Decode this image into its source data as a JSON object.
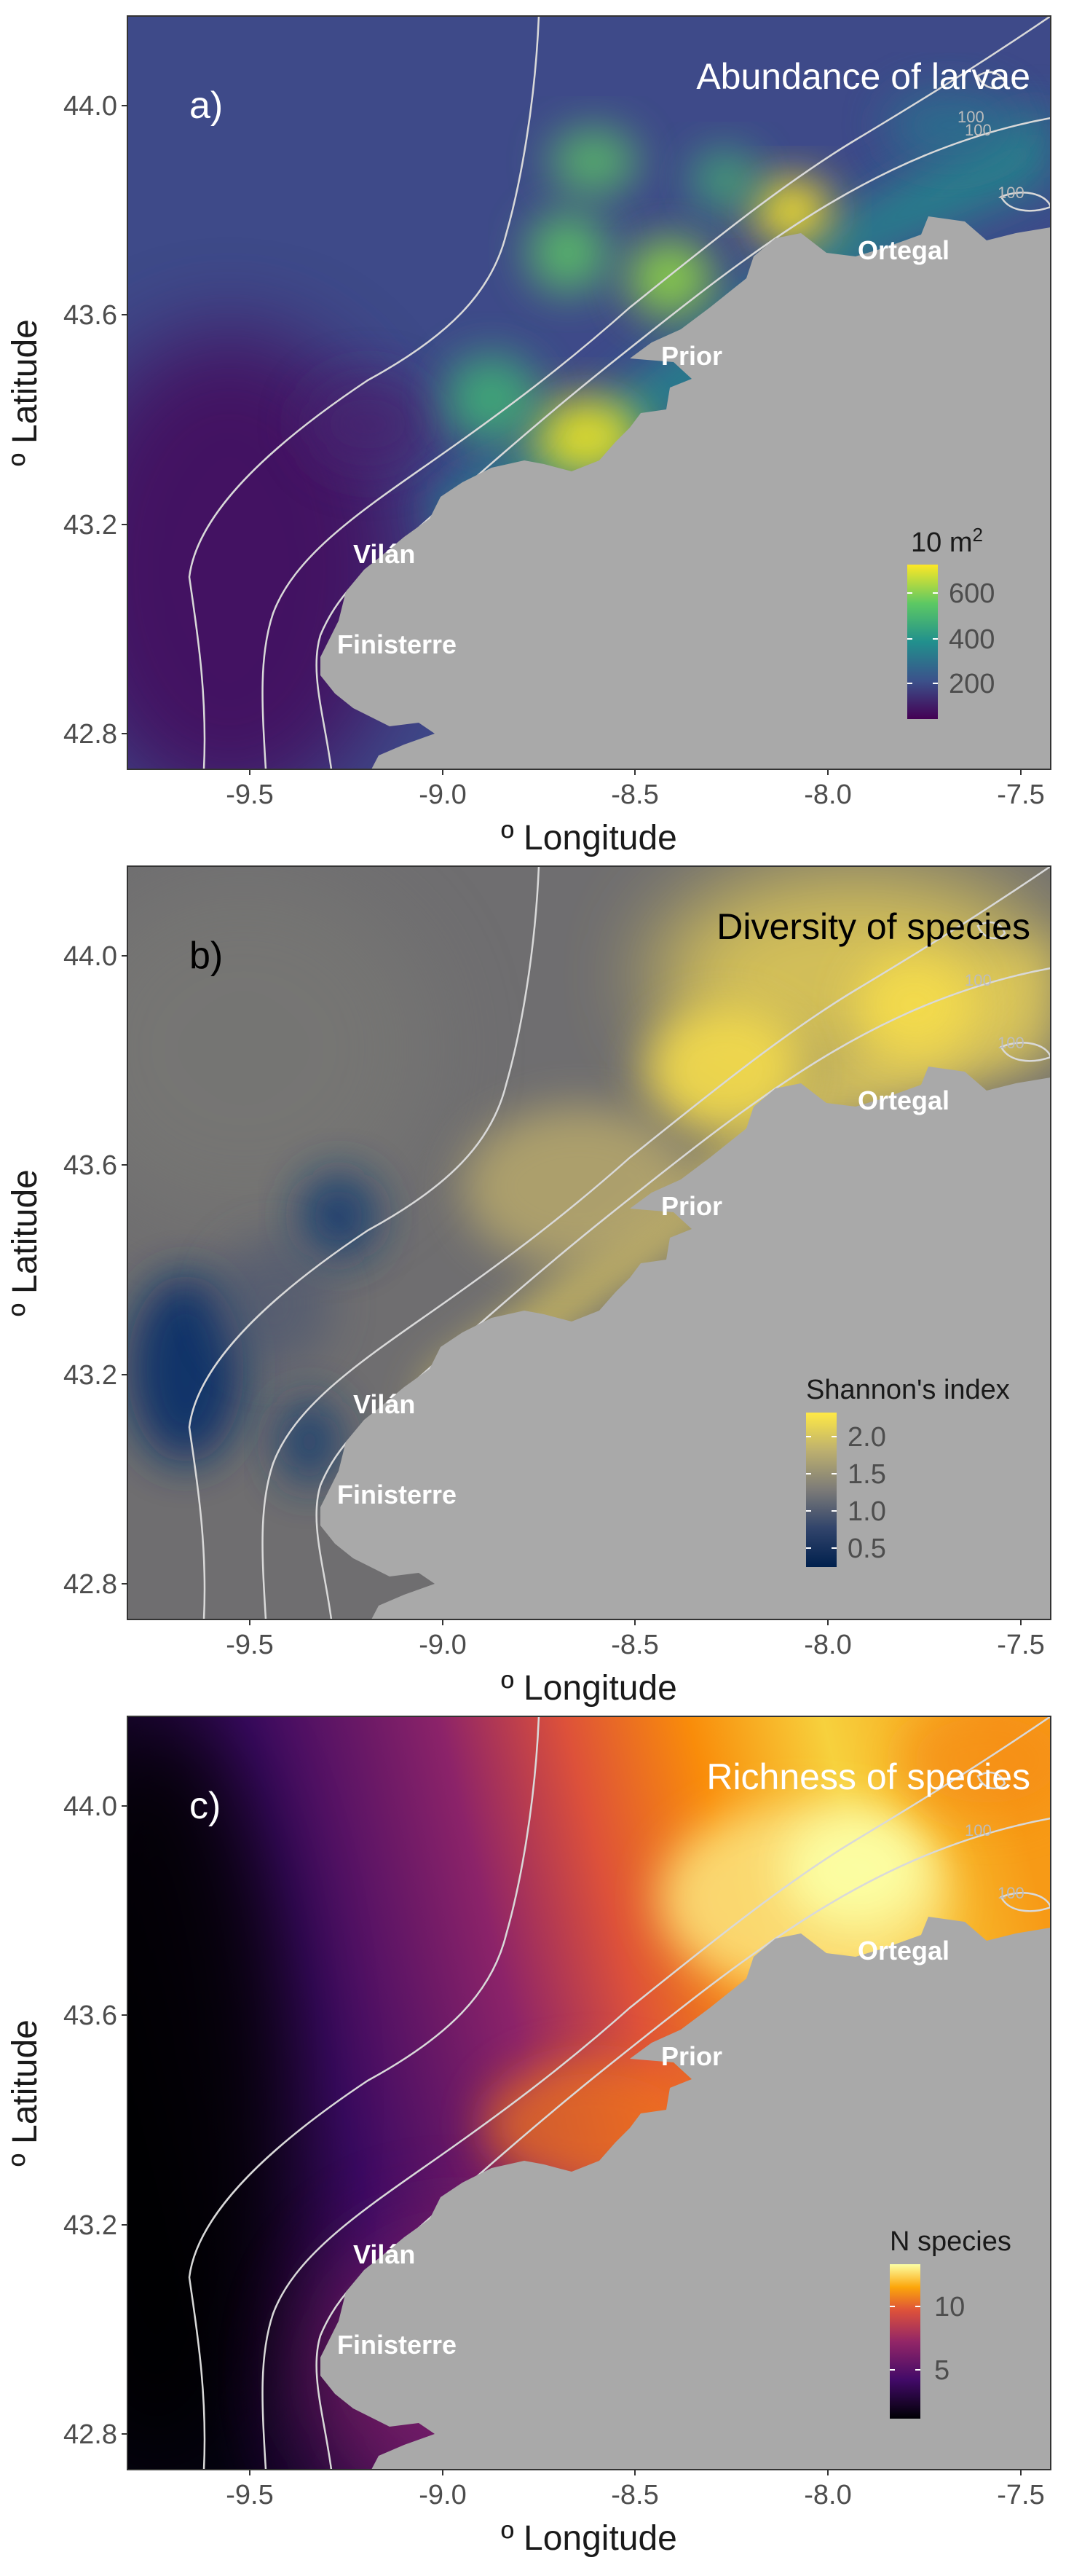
{
  "figure": {
    "x_axis_title": "º Longitude",
    "y_axis_title": "º Latitude",
    "x_ticks": [
      "-9.5",
      "-9.0",
      "-8.5",
      "-8.0",
      "-7.5"
    ],
    "y_ticks": [
      "42.8",
      "43.2",
      "43.6",
      "44.0"
    ],
    "places": [
      "Ortegal",
      "Prior",
      "Vilán",
      "Finisterre"
    ],
    "isobath_label": "100",
    "land_color": "#a9a9a9",
    "isobath_color": "#d9d9d9"
  },
  "panels": [
    {
      "tag": "a)",
      "title": "Abundance of larvae",
      "legend_title_base": "10 m",
      "legend_title_sup": "2",
      "legend_ticks": [
        "200",
        "400",
        "600"
      ],
      "palette": "viridis",
      "text_color": "#ffffff"
    },
    {
      "tag": "b)",
      "title": "Diversity of species",
      "legend_title_base": "Shannon's index",
      "legend_title_sup": "",
      "legend_ticks": [
        "0.5",
        "1.0",
        "1.5",
        "2.0"
      ],
      "palette": "cividis",
      "text_color": "#000000"
    },
    {
      "tag": "c)",
      "title": "Richness of species",
      "legend_title_base": "N species",
      "legend_title_sup": "",
      "legend_ticks": [
        "5",
        "10"
      ],
      "palette": "inferno",
      "text_color": "#ffffff"
    }
  ],
  "chart_data": [
    {
      "type": "heatmap",
      "title": "Abundance of larvae",
      "xlabel": "º Longitude",
      "ylabel": "º Latitude",
      "xlim": [
        -9.83,
        -7.4
      ],
      "ylim": [
        42.73,
        44.17
      ],
      "colorbar": {
        "label": "10 m2",
        "range": [
          60,
          680
        ],
        "ticks": [
          200,
          400,
          600
        ]
      },
      "hotspots": [
        {
          "lon": -8.06,
          "lat": 43.79,
          "value": 620
        },
        {
          "lon": -8.6,
          "lat": 43.35,
          "value": 610
        },
        {
          "lon": -8.4,
          "lat": 43.66,
          "value": 520
        },
        {
          "lon": -8.64,
          "lat": 43.7,
          "value": 470
        },
        {
          "lon": -8.55,
          "lat": 43.88,
          "value": 450
        },
        {
          "lon": -8.78,
          "lat": 43.4,
          "value": 420
        },
        {
          "lon": -8.28,
          "lat": 43.85,
          "value": 380
        }
      ]
    },
    {
      "type": "heatmap",
      "title": "Diversity of species",
      "xlabel": "º Longitude",
      "ylabel": "º Latitude",
      "xlim": [
        -9.83,
        -7.4
      ],
      "ylim": [
        42.73,
        44.17
      ],
      "colorbar": {
        "label": "Shannon's index",
        "range": [
          0.3,
          2.3
        ],
        "ticks": [
          0.5,
          1.0,
          1.5,
          2.0
        ]
      },
      "hotspots": [
        {
          "lon": -8.25,
          "lat": 43.78,
          "value": 2.2
        },
        {
          "lon": -7.85,
          "lat": 43.9,
          "value": 2.2
        },
        {
          "lon": -9.55,
          "lat": 43.2,
          "value": 0.4
        },
        {
          "lon": -9.2,
          "lat": 43.52,
          "value": 0.7
        },
        {
          "lon": -9.35,
          "lat": 43.05,
          "value": 0.6
        }
      ]
    },
    {
      "type": "heatmap",
      "title": "Richness of species",
      "xlabel": "º Longitude",
      "ylabel": "º Latitude",
      "xlim": [
        -9.83,
        -7.4
      ],
      "ylim": [
        42.73,
        44.17
      ],
      "colorbar": {
        "label": "N species",
        "range": [
          2,
          13
        ],
        "ticks": [
          5,
          10
        ]
      },
      "hotspots": [
        {
          "lon": -8.0,
          "lat": 43.8,
          "value": 13
        },
        {
          "lon": -9.8,
          "lat": 43.55,
          "value": 2
        }
      ]
    }
  ]
}
